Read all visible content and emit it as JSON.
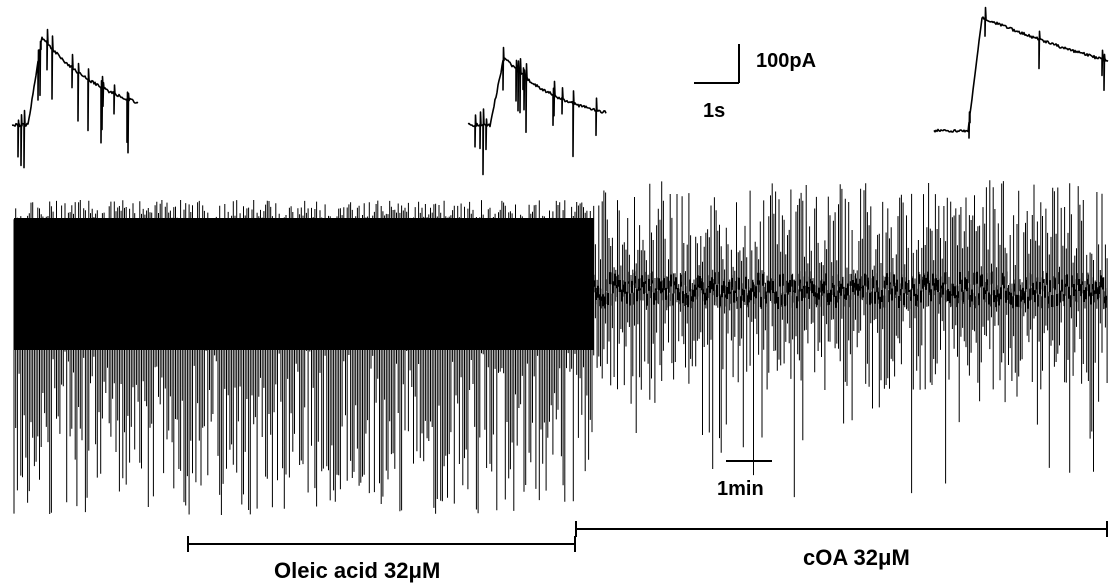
{
  "figure": {
    "scale_bar_current": "100pA",
    "scale_bar_time_short": "1s",
    "scale_bar_time_long": "1min",
    "treatments": [
      {
        "label": "Oleic acid  32μM"
      },
      {
        "label": "cOA  32μM"
      }
    ],
    "trace_color": "#000000",
    "background": "#ffffff"
  }
}
